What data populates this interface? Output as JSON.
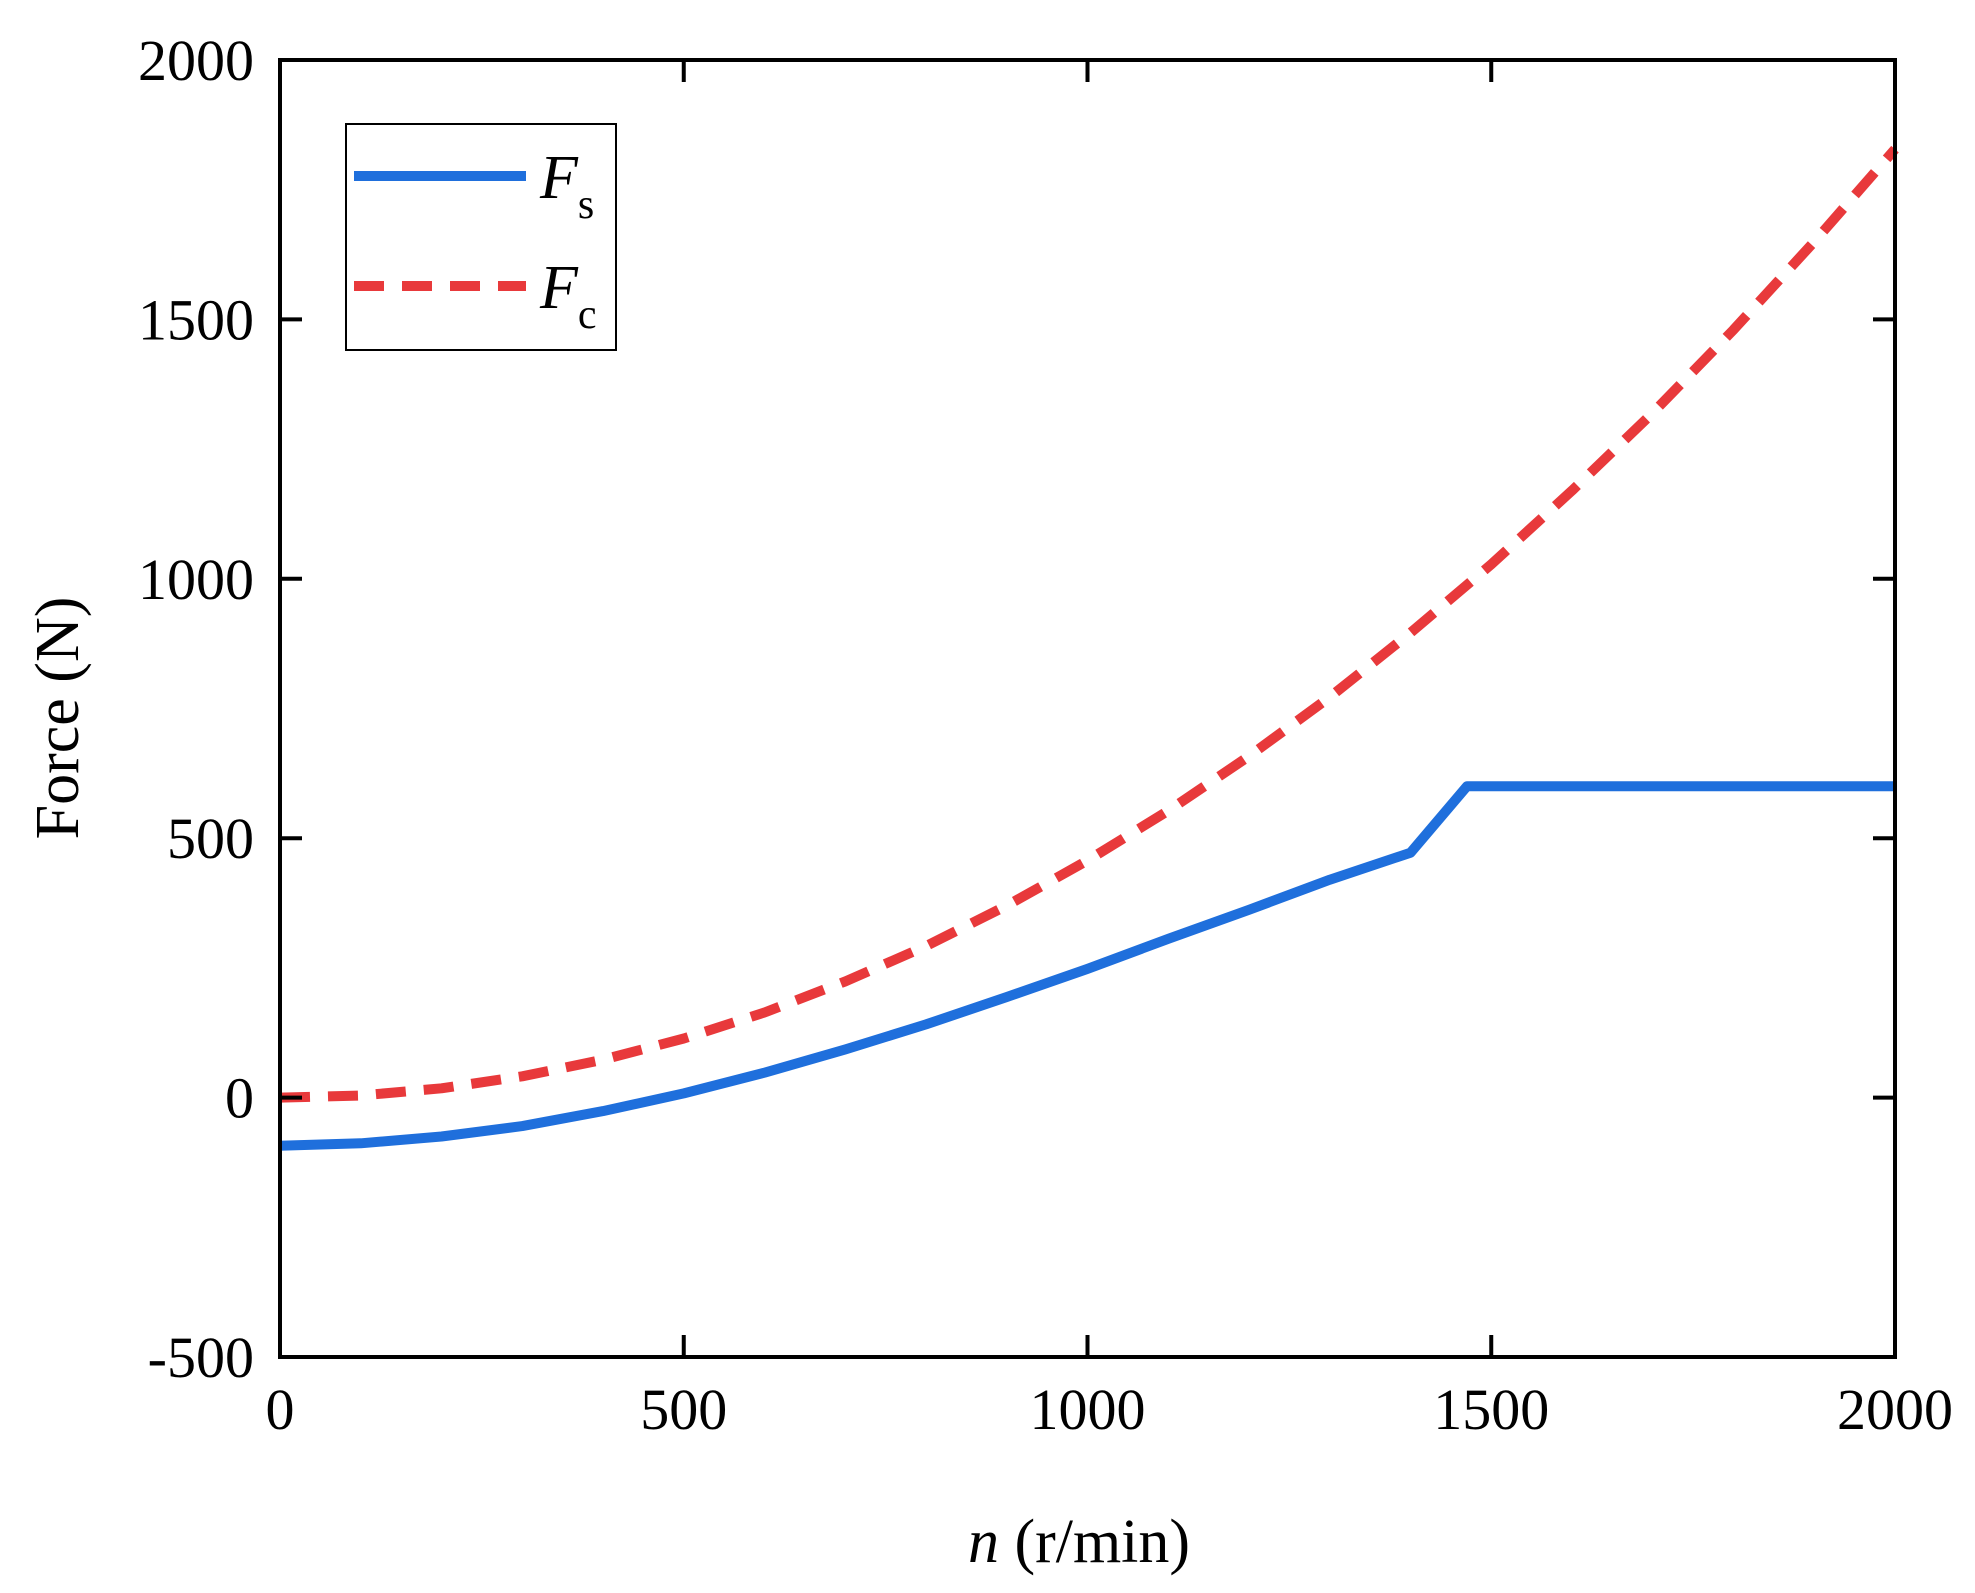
{
  "chart_data": {
    "type": "line",
    "title": "",
    "xlabel": {
      "var": "n",
      "unit": " (r/min)"
    },
    "ylabel": "Force (N)",
    "xlim": [
      0,
      2000
    ],
    "ylim": [
      -500,
      2000
    ],
    "xticks": [
      0,
      500,
      1000,
      1500,
      2000
    ],
    "yticks": [
      -500,
      0,
      500,
      1000,
      1500,
      2000
    ],
    "xtick_labels": [
      "0",
      "500",
      "1000",
      "1500",
      "2000"
    ],
    "ytick_labels": [
      "-500",
      "0",
      "500",
      "1000",
      "1500",
      "2000"
    ],
    "grid": false,
    "legend_position": "top-left",
    "series": [
      {
        "name": "F_s",
        "label_main": "F",
        "label_sub": "s",
        "color": "#1f6fdc",
        "style": "solid",
        "x": [
          0,
          100,
          200,
          300,
          400,
          500,
          600,
          700,
          800,
          900,
          1000,
          1100,
          1200,
          1300,
          1400,
          1470,
          1500,
          1600,
          1700,
          1800,
          1900,
          2000
        ],
        "y": [
          -93,
          -88,
          -75,
          -55,
          -26,
          8,
          48,
          93,
          141,
          194,
          248,
          306,
          362,
          420,
          472,
          600,
          600,
          600,
          600,
          600,
          600,
          600
        ]
      },
      {
        "name": "F_c",
        "label_main": "F",
        "label_sub": "c",
        "color": "#e8393b",
        "style": "dashed",
        "x": [
          0,
          100,
          200,
          300,
          400,
          500,
          600,
          700,
          800,
          900,
          1000,
          1100,
          1200,
          1300,
          1400,
          1500,
          1600,
          1700,
          1800,
          1900,
          2000
        ],
        "y": [
          0,
          4,
          18,
          41,
          73,
          114,
          164,
          224,
          292,
          370,
          457,
          553,
          658,
          772,
          896,
          1028,
          1170,
          1320,
          1480,
          1650,
          1828
        ]
      }
    ]
  }
}
